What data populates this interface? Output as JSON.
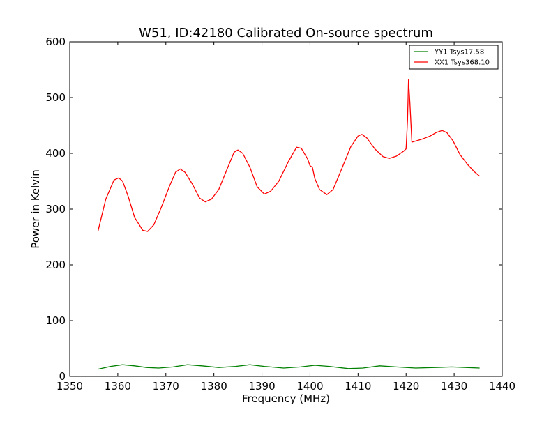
{
  "chart_data": {
    "type": "line",
    "title": "W51, ID:42180 Calibrated On-source spectrum",
    "xlabel": "Frequency (MHz)",
    "ylabel": "Power in Kelvin",
    "xlim": [
      1350,
      1440
    ],
    "ylim": [
      0,
      600
    ],
    "xticks": [
      1350,
      1360,
      1370,
      1380,
      1390,
      1400,
      1410,
      1420,
      1430,
      1440
    ],
    "yticks": [
      0,
      100,
      200,
      300,
      400,
      500,
      600
    ],
    "grid": false,
    "legend_position": "top-right",
    "series": [
      {
        "name": "YY1 Tsys17.58",
        "color": "#008000",
        "points": [
          [
            1355.9,
            13
          ],
          [
            1358.5,
            18
          ],
          [
            1361.0,
            21
          ],
          [
            1363.5,
            19
          ],
          [
            1366.0,
            16
          ],
          [
            1368.5,
            15
          ],
          [
            1371.5,
            17
          ],
          [
            1374.5,
            21
          ],
          [
            1377.5,
            19
          ],
          [
            1381.0,
            16
          ],
          [
            1384.5,
            18
          ],
          [
            1387.5,
            21
          ],
          [
            1390.5,
            18
          ],
          [
            1394.5,
            15
          ],
          [
            1398.0,
            17
          ],
          [
            1401.0,
            20
          ],
          [
            1404.0,
            18
          ],
          [
            1408.0,
            14
          ],
          [
            1411.0,
            15
          ],
          [
            1414.5,
            19
          ],
          [
            1418.0,
            17
          ],
          [
            1422.0,
            15
          ],
          [
            1426.0,
            16
          ],
          [
            1429.5,
            17
          ],
          [
            1432.5,
            16
          ],
          [
            1435.3,
            15
          ]
        ]
      },
      {
        "name": "XX1 Tsys368.10",
        "color": "#ff0000",
        "points": [
          [
            1355.9,
            261
          ],
          [
            1357.5,
            318
          ],
          [
            1359.2,
            352
          ],
          [
            1360.2,
            356
          ],
          [
            1361.0,
            350
          ],
          [
            1362.2,
            322
          ],
          [
            1363.5,
            285
          ],
          [
            1365.2,
            262
          ],
          [
            1366.2,
            260
          ],
          [
            1367.5,
            272
          ],
          [
            1369.0,
            302
          ],
          [
            1370.8,
            342
          ],
          [
            1372.0,
            366
          ],
          [
            1373.0,
            372
          ],
          [
            1374.0,
            366
          ],
          [
            1375.5,
            345
          ],
          [
            1377.0,
            320
          ],
          [
            1378.2,
            313
          ],
          [
            1379.5,
            318
          ],
          [
            1381.0,
            335
          ],
          [
            1382.8,
            373
          ],
          [
            1384.2,
            402
          ],
          [
            1385.0,
            406
          ],
          [
            1386.0,
            400
          ],
          [
            1387.5,
            375
          ],
          [
            1389.0,
            340
          ],
          [
            1390.5,
            327
          ],
          [
            1391.8,
            332
          ],
          [
            1393.5,
            350
          ],
          [
            1395.5,
            385
          ],
          [
            1397.2,
            411
          ],
          [
            1398.2,
            409
          ],
          [
            1399.5,
            390
          ],
          [
            1400.0,
            378
          ],
          [
            1400.5,
            375
          ],
          [
            1401.0,
            355
          ],
          [
            1402.0,
            335
          ],
          [
            1403.5,
            326
          ],
          [
            1404.8,
            335
          ],
          [
            1406.5,
            370
          ],
          [
            1408.5,
            412
          ],
          [
            1410.0,
            431
          ],
          [
            1410.8,
            434
          ],
          [
            1411.8,
            428
          ],
          [
            1413.5,
            408
          ],
          [
            1415.2,
            394
          ],
          [
            1416.5,
            391
          ],
          [
            1418.0,
            395
          ],
          [
            1419.5,
            404
          ],
          [
            1420.0,
            408
          ],
          [
            1420.3,
            460
          ],
          [
            1420.5,
            532
          ],
          [
            1420.8,
            490
          ],
          [
            1421.2,
            420
          ],
          [
            1422.0,
            422
          ],
          [
            1423.5,
            426
          ],
          [
            1425.0,
            431
          ],
          [
            1426.2,
            437
          ],
          [
            1427.5,
            441
          ],
          [
            1428.5,
            437
          ],
          [
            1429.8,
            422
          ],
          [
            1431.2,
            398
          ],
          [
            1432.8,
            380
          ],
          [
            1434.2,
            367
          ],
          [
            1435.3,
            359
          ]
        ]
      }
    ]
  }
}
